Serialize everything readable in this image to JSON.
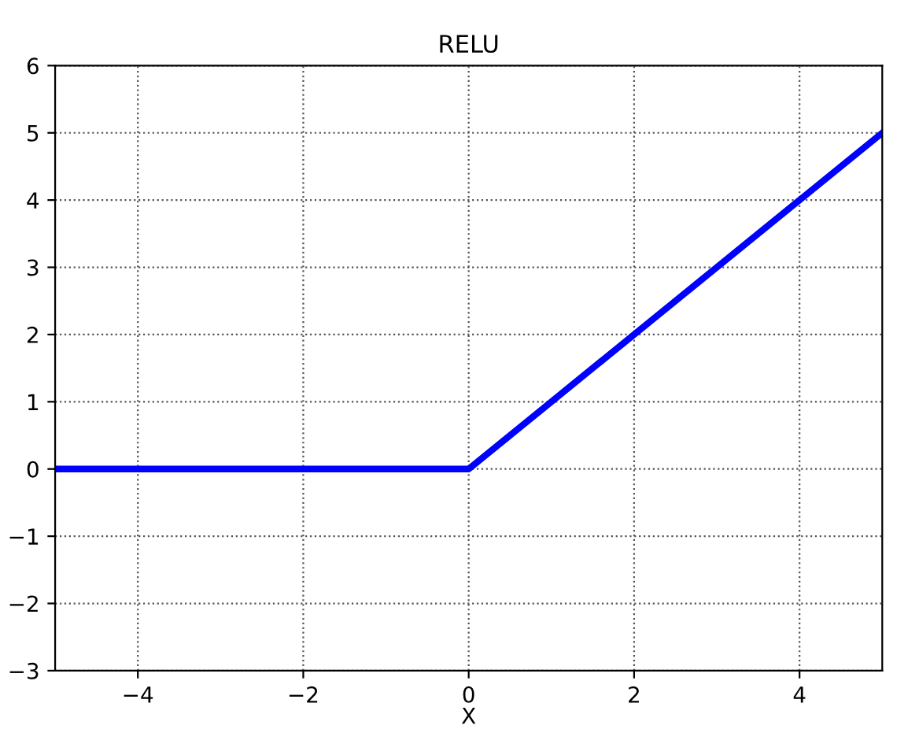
{
  "chart_data": {
    "type": "line",
    "title": "RELU",
    "xlabel": "X",
    "x": [
      -5,
      0,
      5
    ],
    "series": [
      {
        "color": "#0000ff",
        "values": [
          0,
          0,
          5
        ]
      }
    ],
    "xlim": [
      -5,
      5
    ],
    "ylim": [
      -3,
      6
    ],
    "xticks": [
      {
        "value": -4,
        "label": "−4"
      },
      {
        "value": -2,
        "label": "−2"
      },
      0,
      2,
      4
    ],
    "yticks": [
      {
        "value": -3,
        "label": "−3"
      },
      {
        "value": -2,
        "label": "−2"
      },
      {
        "value": -1,
        "label": "−1"
      },
      0,
      1,
      2,
      3,
      4,
      5,
      6
    ],
    "grid": true,
    "line_style": "solid"
  }
}
